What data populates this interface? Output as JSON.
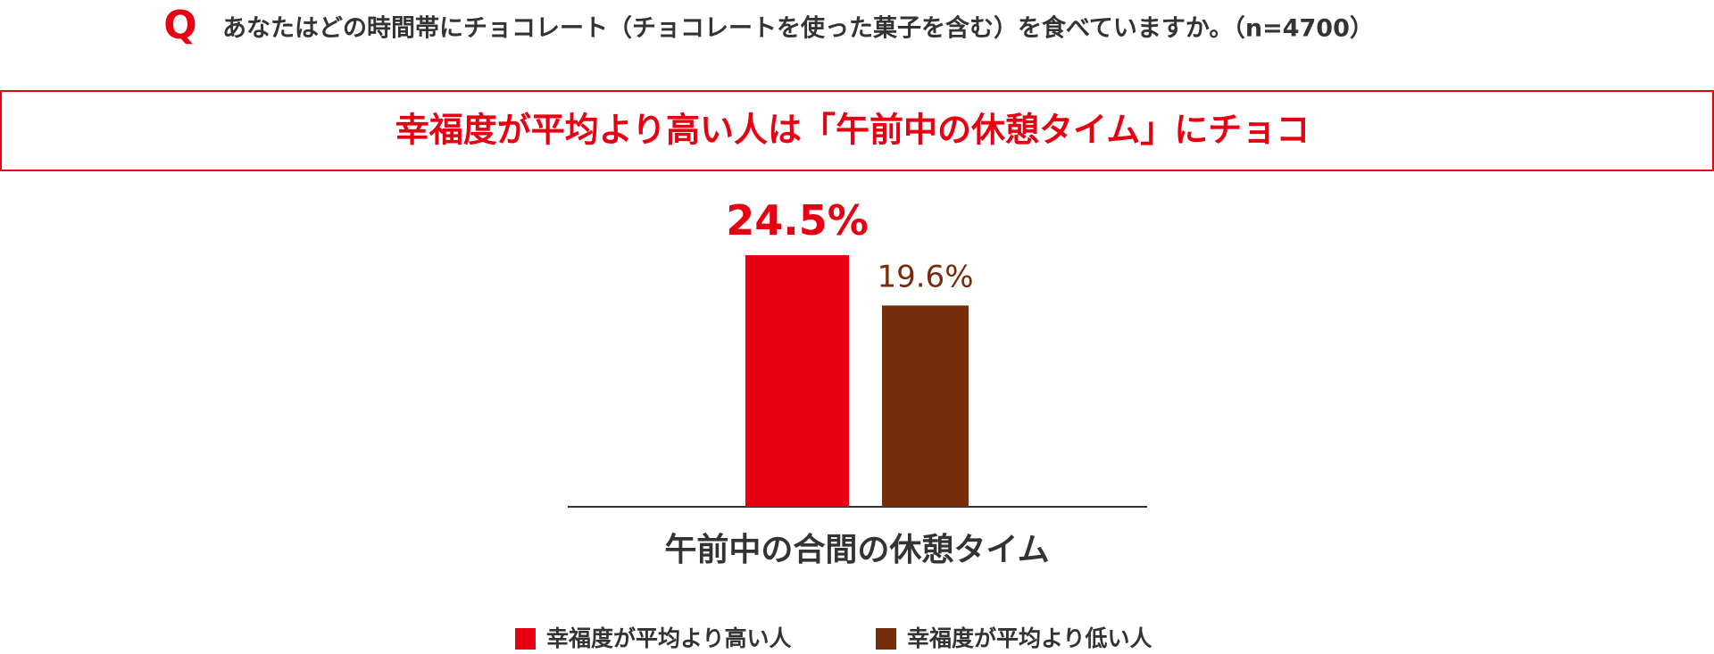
{
  "question_mark": "Q",
  "question": "あなたはどの時間帯にチョコレート（チョコレートを使った菓子を含む）を食べていますか。（n=4700）",
  "headline": "幸福度が平均より高い人は「午前中の休憩タイム」にチョコ",
  "chart_data": {
    "type": "bar",
    "categories": [
      "午前中の合間の休憩タイム"
    ],
    "series": [
      {
        "name": "幸福度が平均より高い人",
        "color": "#e60012",
        "values": [
          24.5
        ],
        "value_labels": [
          "24.5%"
        ]
      },
      {
        "name": "幸福度が平均より低い人",
        "color": "#772c0b",
        "values": [
          19.6
        ],
        "value_labels": [
          "19.6%"
        ]
      }
    ]
  }
}
